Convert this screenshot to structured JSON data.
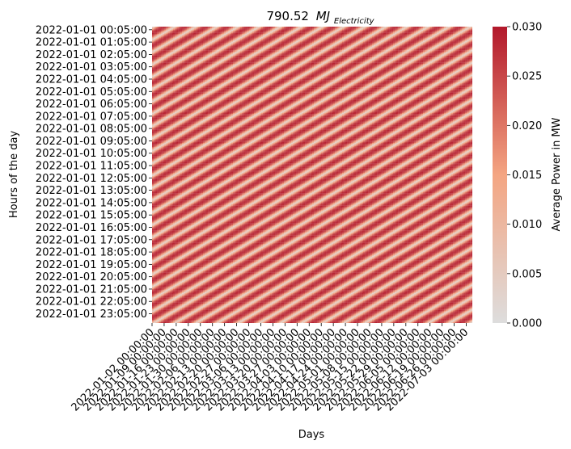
{
  "chart_data": {
    "type": "heatmap",
    "title": "790.52",
    "title_math_main": "MJ",
    "title_math_sub": "Electricity",
    "xlabel": "Days",
    "ylabel": "Hours of the day",
    "colorbar_label": "Average Power in MW",
    "y_ticks": [
      "2022-01-01 00:05:00",
      "2022-01-01 01:05:00",
      "2022-01-01 02:05:00",
      "2022-01-01 03:05:00",
      "2022-01-01 04:05:00",
      "2022-01-01 05:05:00",
      "2022-01-01 06:05:00",
      "2022-01-01 07:05:00",
      "2022-01-01 08:05:00",
      "2022-01-01 09:05:00",
      "2022-01-01 10:05:00",
      "2022-01-01 11:05:00",
      "2022-01-01 12:05:00",
      "2022-01-01 13:05:00",
      "2022-01-01 14:05:00",
      "2022-01-01 15:05:00",
      "2022-01-01 16:05:00",
      "2022-01-01 17:05:00",
      "2022-01-01 18:05:00",
      "2022-01-01 19:05:00",
      "2022-01-01 20:05:00",
      "2022-01-01 21:05:00",
      "2022-01-01 22:05:00",
      "2022-01-01 23:05:00"
    ],
    "x_ticks": [
      "2022-01-02 00:00:00",
      "2022-01-09 00:00:00",
      "2022-01-16 00:00:00",
      "2022-01-23 00:00:00",
      "2022-01-30 00:00:00",
      "2022-02-06 00:00:00",
      "2022-02-13 00:00:00",
      "2022-02-20 00:00:00",
      "2022-02-27 00:00:00",
      "2022-03-06 00:00:00",
      "2022-03-13 00:00:00",
      "2022-03-20 00:00:00",
      "2022-03-27 00:00:00",
      "2022-04-03 00:00:00",
      "2022-04-10 00:00:00",
      "2022-04-17 00:00:00",
      "2022-04-24 00:00:00",
      "2022-05-01 00:00:00",
      "2022-05-08 00:00:00",
      "2022-05-15 00:00:00",
      "2022-05-22 00:00:00",
      "2022-05-29 00:00:00",
      "2022-06-05 00:00:00",
      "2022-06-12 00:00:00",
      "2022-06-19 00:00:00",
      "2022-06-26 00:00:00",
      "2022-07-03 00:00:00"
    ],
    "colorbar_ticks": [
      "0.000",
      "0.005",
      "0.010",
      "0.020",
      "0.025",
      "0.030"
    ],
    "colorbar_tick_values": [
      0,
      0.005,
      0.01,
      0.02,
      0.025,
      0.03
    ],
    "colorbar_extra_tick": "0.015",
    "colorbar_extra_value": 0.015,
    "vmin": 0.0,
    "vmax": 0.03,
    "colormap": "coolwarm-upper",
    "colors": {
      "low": "#dddddd",
      "mid": "#f4a582",
      "high": "#b2182b"
    },
    "pattern": {
      "rows": 288,
      "days": 182,
      "period": 12,
      "stripe_values": [
        0.003,
        0.009,
        0.016,
        0.022,
        0.026,
        0.028,
        0.029,
        0.028,
        0.026,
        0.022,
        0.016,
        0.009
      ]
    }
  }
}
